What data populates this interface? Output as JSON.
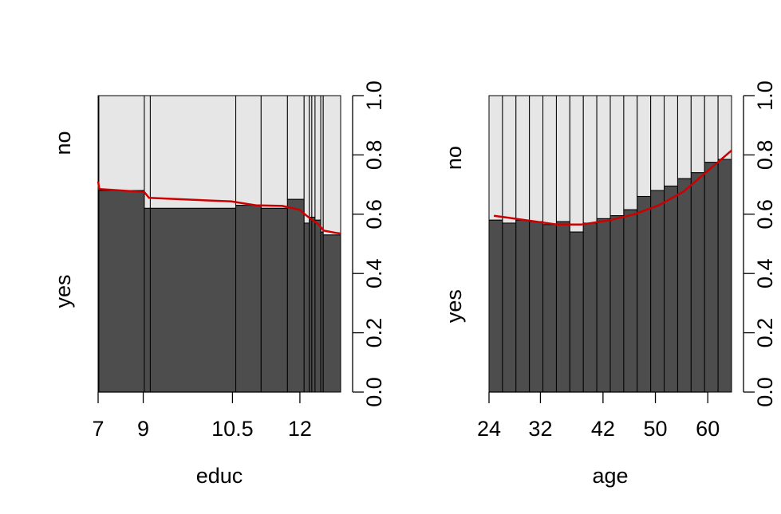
{
  "chart_data": [
    {
      "type": "spineplot",
      "xlabel": "educ",
      "y_categories": [
        "yes",
        "no"
      ],
      "x_tick_labels": [
        "7",
        "9",
        "10.5",
        "12"
      ],
      "y_tick_labels": [
        "0.0",
        "0.2",
        "0.4",
        "0.6",
        "0.8",
        "1.0"
      ],
      "ylim": [
        0,
        1
      ],
      "bars": [
        {
          "width": 0.003,
          "yes": 0.68
        },
        {
          "width": 0.183,
          "yes": 0.68
        },
        {
          "width": 0.024,
          "yes": 0.62
        },
        {
          "width": 0.344,
          "yes": 0.62
        },
        {
          "width": 0.102,
          "yes": 0.63
        },
        {
          "width": 0.106,
          "yes": 0.62
        },
        {
          "width": 0.067,
          "yes": 0.65
        },
        {
          "width": 0.021,
          "yes": 0.57
        },
        {
          "width": 0.01,
          "yes": 0.59
        },
        {
          "width": 0.013,
          "yes": 0.59
        },
        {
          "width": 0.023,
          "yes": 0.58
        },
        {
          "width": 0.01,
          "yes": 0.54
        },
        {
          "width": 0.07,
          "yes": 0.53
        }
      ],
      "tick_positions": [
        0.0,
        0.186,
        0.554,
        0.832
      ],
      "fit_line": {
        "color": "#cc0000",
        "points": [
          [
            0.0,
            0.71
          ],
          [
            0.005,
            0.685
          ],
          [
            0.19,
            0.675
          ],
          [
            0.21,
            0.655
          ],
          [
            0.55,
            0.643
          ],
          [
            0.65,
            0.63
          ],
          [
            0.76,
            0.628
          ],
          [
            0.83,
            0.615
          ],
          [
            0.86,
            0.595
          ],
          [
            0.91,
            0.565
          ],
          [
            0.93,
            0.545
          ],
          [
            0.98,
            0.537
          ],
          [
            1.0,
            0.535
          ]
        ]
      },
      "colors": {
        "yes": "#4d4d4d",
        "no": "#e6e6e6",
        "fit": "#cc0000"
      }
    },
    {
      "type": "spineplot",
      "xlabel": "age",
      "y_categories": [
        "yes",
        "no"
      ],
      "x_tick_labels": [
        "24",
        "32",
        "42",
        "50",
        "60"
      ],
      "y_tick_labels": [
        "0.0",
        "0.2",
        "0.4",
        "0.6",
        "0.8",
        "1.0"
      ],
      "ylim": [
        0,
        1
      ],
      "bars": [
        {
          "width": 1,
          "yes": 0.58
        },
        {
          "width": 1,
          "yes": 0.57
        },
        {
          "width": 1,
          "yes": 0.58
        },
        {
          "width": 1,
          "yes": 0.575
        },
        {
          "width": 1,
          "yes": 0.565
        },
        {
          "width": 1,
          "yes": 0.575
        },
        {
          "width": 1,
          "yes": 0.54
        },
        {
          "width": 1,
          "yes": 0.57
        },
        {
          "width": 1,
          "yes": 0.585
        },
        {
          "width": 1,
          "yes": 0.595
        },
        {
          "width": 1,
          "yes": 0.615
        },
        {
          "width": 1,
          "yes": 0.66
        },
        {
          "width": 1,
          "yes": 0.68
        },
        {
          "width": 1,
          "yes": 0.695
        },
        {
          "width": 1,
          "yes": 0.72
        },
        {
          "width": 1,
          "yes": 0.74
        },
        {
          "width": 1,
          "yes": 0.775
        },
        {
          "width": 1,
          "yes": 0.785
        }
      ],
      "tick_positions": [
        0.0,
        0.212,
        0.47,
        0.686,
        0.902
      ],
      "fit_line": {
        "color": "#cc0000",
        "points": [
          [
            0.02,
            0.595
          ],
          [
            0.15,
            0.58
          ],
          [
            0.28,
            0.565
          ],
          [
            0.38,
            0.565
          ],
          [
            0.5,
            0.58
          ],
          [
            0.6,
            0.6
          ],
          [
            0.7,
            0.63
          ],
          [
            0.8,
            0.675
          ],
          [
            0.9,
            0.745
          ],
          [
            1.0,
            0.815
          ]
        ]
      },
      "colors": {
        "yes": "#4d4d4d",
        "no": "#e6e6e6",
        "fit": "#cc0000"
      }
    }
  ]
}
